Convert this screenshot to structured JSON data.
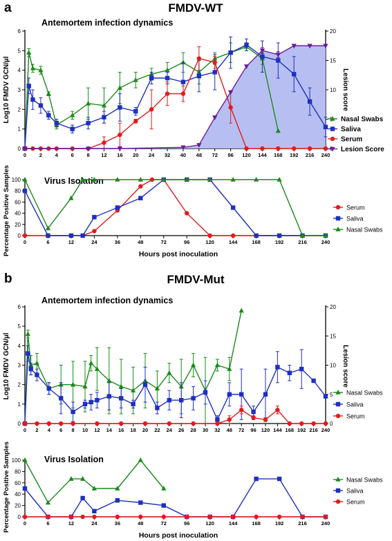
{
  "panels": [
    {
      "letter": "a",
      "title": "FMDV-WT",
      "top": {
        "subtitle": "Antemortem infection dynamics",
        "ylabel": "Log10 FMDV GCN/µl",
        "ylabel_right": "Lesion score"
      },
      "bottom": {
        "subtitle": "Virus Isolation",
        "ylabel": "Percentage Positive Samples",
        "xlabel": "Hours post inoculation"
      }
    },
    {
      "letter": "b",
      "title": "FMDV-Mut",
      "top": {
        "subtitle": "Antemortem infection dynamics",
        "ylabel": "Log10 FMDV GCN/µl",
        "ylabel_right": "Lesion score"
      },
      "bottom": {
        "subtitle": "Virus Isolation",
        "ylabel": "Percentage Positive Samples",
        "xlabel": "Hours post inoculation"
      }
    }
  ],
  "colors": {
    "nasal": "#1a8a1a",
    "saliva": "#1f2fbf",
    "serum": "#e41a1c",
    "lesion": "#6a1b9a",
    "lesion_fill": "#aab4f0"
  },
  "chart_data": [
    {
      "id": "wt-top",
      "type": "line",
      "title": "Antemortem infection dynamics",
      "ylabel": "Log10 FMDV GCN/µl",
      "ylabel_right": "Lesion score",
      "x_ticks": [
        0,
        2,
        4,
        6,
        8,
        12,
        16,
        20,
        24,
        32,
        40,
        48,
        72,
        96,
        120,
        144,
        168,
        192,
        216,
        240
      ],
      "ylim": [
        0,
        6
      ],
      "y_ticks": [
        0,
        1,
        2,
        3,
        4,
        5,
        6
      ],
      "ylim_right": [
        0,
        20
      ],
      "y_ticks_right": [
        0,
        5,
        10,
        15,
        20
      ],
      "legend_position": "right",
      "series": [
        {
          "name": "Nasal Swabs",
          "key": "nasal",
          "marker": "triangle",
          "x": [
            0,
            0.5,
            1,
            2,
            3,
            4,
            6,
            8,
            12,
            16,
            20,
            24,
            32,
            40,
            48,
            72,
            96,
            120,
            144,
            168
          ],
          "y": [
            0,
            4.9,
            4.1,
            4.0,
            2.8,
            1.2,
            1.7,
            2.3,
            2.2,
            3.1,
            3.5,
            3.8,
            4.0,
            4.4,
            3.9,
            4.6,
            4.9,
            5.2,
            4.6,
            0.9
          ],
          "err": [
            0,
            0.2,
            0.2,
            0.2,
            0.1,
            0.2,
            0.2,
            0.8,
            0.9,
            0.8,
            0.4,
            0.3,
            0.4,
            0.5,
            0.6,
            0.3,
            0.5,
            0.2,
            0.3,
            0
          ]
        },
        {
          "name": "Saliva",
          "key": "saliva",
          "marker": "square",
          "x": [
            0,
            0.5,
            1,
            2,
            3,
            4,
            6,
            8,
            12,
            16,
            20,
            24,
            32,
            40,
            48,
            72,
            96,
            120,
            144,
            168,
            192,
            216,
            240
          ],
          "y": [
            0,
            3.2,
            2.5,
            2.2,
            1.7,
            1.3,
            1.0,
            1.3,
            1.6,
            2.1,
            1.9,
            3.6,
            3.6,
            3.4,
            3.7,
            3.9,
            4.9,
            5.3,
            4.7,
            4.5,
            3.8,
            2.4,
            1.1
          ],
          "err": [
            0,
            0.4,
            0.5,
            0.4,
            0.2,
            0.2,
            0.2,
            0.3,
            0.3,
            0.7,
            0.2,
            0.3,
            0.3,
            1.0,
            0.8,
            0.9,
            0.8,
            0.3,
            0.8,
            0.9,
            0.9,
            0.7,
            0.5
          ]
        },
        {
          "name": "Serum",
          "key": "serum",
          "marker": "circle",
          "x": [
            0,
            1,
            2,
            3,
            4,
            6,
            8,
            12,
            16,
            20,
            24,
            32,
            40,
            48,
            72,
            96,
            120,
            144,
            168,
            192,
            216,
            240
          ],
          "y": [
            0,
            0,
            0,
            0,
            0,
            0,
            0,
            0.3,
            0.7,
            1.4,
            2.0,
            2.8,
            2.8,
            4.6,
            4.4,
            2.1,
            0,
            0,
            0,
            0,
            0,
            0
          ],
          "err": [
            0,
            0,
            0,
            0,
            0,
            0,
            0,
            0.3,
            0.6,
            0.1,
            1.0,
            0.6,
            0.4,
            0.6,
            0.3,
            0.8,
            0,
            0,
            0,
            0,
            0,
            0
          ]
        },
        {
          "name": "Lesion Score",
          "key": "lesion",
          "marker": "triangle-down",
          "axis": "right",
          "filled": true,
          "x": [
            0,
            8,
            16,
            40,
            48,
            72,
            96,
            120,
            144,
            168,
            192,
            216,
            240
          ],
          "y": [
            0,
            0,
            0,
            0.2,
            0.6,
            5.3,
            9.6,
            14,
            16.7,
            16,
            17.5,
            17.5,
            17.5
          ],
          "err": [
            0,
            0,
            0,
            0,
            0,
            0,
            0,
            0,
            0.5,
            0.5,
            0,
            0,
            0
          ]
        }
      ]
    },
    {
      "id": "wt-bottom",
      "type": "line",
      "title": "Virus Isolation",
      "ylabel": "Percentage Positive Samples",
      "xlabel": "Hours post inoculation",
      "x_ticks": [
        0,
        6,
        12,
        24,
        36,
        48,
        72,
        96,
        120,
        144,
        168,
        192,
        216,
        240
      ],
      "ylim": [
        0,
        100
      ],
      "y_ticks": [
        0,
        20,
        40,
        60,
        80,
        100
      ],
      "legend_position": "right",
      "series": [
        {
          "name": "Serum",
          "key": "serum",
          "marker": "circle",
          "x": [
            0,
            6,
            12,
            18,
            24,
            36,
            48,
            60,
            72,
            96,
            120,
            144,
            168,
            192,
            216,
            240
          ],
          "y": [
            0,
            0,
            0,
            0,
            8,
            45,
            88,
            100,
            100,
            40,
            0,
            0,
            0,
            0,
            0,
            0
          ]
        },
        {
          "name": "Saliva",
          "key": "saliva",
          "marker": "square",
          "x": [
            0,
            6,
            12,
            18,
            24,
            36,
            48,
            72,
            96,
            120,
            144,
            168,
            192,
            216,
            240
          ],
          "y": [
            80,
            0,
            0,
            0,
            33,
            50,
            67,
            100,
            100,
            100,
            50,
            0,
            0,
            0,
            0
          ]
        },
        {
          "name": "Nasal Swabs",
          "key": "nasal",
          "marker": "triangle",
          "x": [
            0,
            6,
            12,
            18,
            24,
            36,
            48,
            72,
            96,
            120,
            144,
            168,
            192,
            216,
            240
          ],
          "y": [
            100,
            13,
            67,
            100,
            100,
            100,
            100,
            100,
            100,
            100,
            100,
            100,
            100,
            0,
            0
          ]
        }
      ]
    },
    {
      "id": "mut-top",
      "type": "line",
      "title": "Antemortem infection dynamics",
      "ylabel": "Log10 FMDV GCN/µl",
      "ylabel_right": "Lesion score",
      "x_ticks": [
        0,
        2,
        4,
        6,
        8,
        10,
        12,
        14,
        16,
        18,
        20,
        22,
        24,
        26,
        28,
        30,
        32,
        48,
        72,
        96,
        120,
        144,
        168,
        192,
        216,
        240
      ],
      "ylim": [
        0,
        6
      ],
      "y_ticks": [
        0,
        1,
        2,
        3,
        4,
        5,
        6
      ],
      "ylim_right": [
        0,
        20
      ],
      "y_ticks_right": [
        0,
        5,
        10,
        15,
        20
      ],
      "legend_position": "right",
      "series": [
        {
          "name": "Nasal Swabs",
          "key": "nasal",
          "marker": "triangle",
          "x": [
            0,
            0.5,
            1,
            2,
            4,
            6,
            8,
            10,
            11,
            12,
            14,
            16,
            18,
            20,
            22,
            24,
            26,
            28,
            30,
            32,
            48,
            72
          ],
          "y": [
            0,
            4.6,
            3.0,
            3.1,
            1.8,
            2.0,
            2.0,
            1.9,
            3.1,
            2.8,
            2.2,
            1.9,
            1.7,
            2.2,
            1.8,
            2.6,
            1.9,
            3.0,
            1.7,
            3.0,
            2.8,
            5.8
          ],
          "err": [
            0,
            0.2,
            0.5,
            0.5,
            0.3,
            1.0,
            1.2,
            1.3,
            0.4,
            1.1,
            1.7,
            1.4,
            1.2,
            1.4,
            0.9,
            0.5,
            1.4,
            0.6,
            1.7,
            0.3,
            0.6,
            0
          ]
        },
        {
          "name": "Saliva",
          "key": "saliva",
          "marker": "square",
          "x": [
            0,
            0.5,
            1,
            2,
            4,
            6,
            8,
            10,
            11,
            12,
            14,
            16,
            18,
            20,
            22,
            24,
            26,
            28,
            30,
            32,
            48,
            72,
            96,
            120,
            144,
            168,
            192,
            216,
            240
          ],
          "y": [
            0,
            3.6,
            2.8,
            2.5,
            1.8,
            1.3,
            0.6,
            1.0,
            1.1,
            1.2,
            1.4,
            1.3,
            1.0,
            2.0,
            0.8,
            1.2,
            1.2,
            1.3,
            1.6,
            0.2,
            1.5,
            1.5,
            0.6,
            1.5,
            2.9,
            2.6,
            2.8,
            2.2,
            1.4
          ],
          "err": [
            0,
            0.4,
            0.3,
            0.3,
            0.3,
            0.8,
            0.5,
            0.2,
            0.4,
            0.4,
            0.7,
            0.5,
            0.2,
            0.9,
            0.3,
            0.5,
            0.9,
            0.6,
            0.6,
            0.2,
            0.6,
            1.3,
            0.3,
            1.3,
            0.8,
            0.4,
            1.0,
            0,
            0
          ]
        },
        {
          "name": "Serum",
          "key": "serum",
          "marker": "circle",
          "x": [
            0,
            2,
            4,
            6,
            8,
            12,
            16,
            20,
            24,
            28,
            32,
            48,
            72,
            96,
            120,
            144,
            168,
            192,
            216,
            240
          ],
          "y": [
            0,
            0,
            0,
            0,
            0,
            0,
            0,
            0,
            0,
            0,
            0,
            0.2,
            0.7,
            0.3,
            0.2,
            0.7,
            0,
            0,
            0,
            0
          ],
          "err": [
            0,
            0,
            0,
            0,
            0,
            0,
            0,
            0,
            0,
            0,
            0,
            0.2,
            0.2,
            0.1,
            0.1,
            0.2,
            0,
            0,
            0,
            0
          ]
        }
      ]
    },
    {
      "id": "mut-bottom",
      "type": "line",
      "title": "Virus Isolation",
      "ylabel": "Percentage Positive Samples",
      "xlabel": "Hours post inoculation",
      "x_ticks": [
        0,
        6,
        12,
        24,
        36,
        48,
        72,
        96,
        120,
        144,
        168,
        192,
        216,
        240
      ],
      "ylim": [
        0,
        100
      ],
      "y_ticks": [
        0,
        20,
        40,
        60,
        80,
        100
      ],
      "legend_position": "right",
      "series": [
        {
          "name": "Nasal Swabs",
          "key": "nasal",
          "marker": "triangle",
          "x": [
            0,
            6,
            12,
            18,
            24,
            36,
            48,
            72
          ],
          "y": [
            100,
            25,
            67,
            67,
            50,
            50,
            100,
            50
          ]
        },
        {
          "name": "Saliva",
          "key": "saliva",
          "marker": "square",
          "x": [
            0,
            6,
            12,
            18,
            24,
            36,
            48,
            72,
            96,
            120,
            144,
            168,
            192,
            216,
            240
          ],
          "y": [
            50,
            0,
            0,
            33,
            10,
            29,
            25,
            20,
            0,
            0,
            0,
            67,
            67,
            0,
            0
          ]
        },
        {
          "name": "Serum",
          "key": "serum",
          "marker": "circle",
          "x": [
            0,
            6,
            12,
            18,
            24,
            36,
            48,
            72,
            96,
            120,
            144,
            168,
            192,
            216,
            240
          ],
          "y": [
            0,
            0,
            0,
            0,
            0,
            0,
            0,
            0,
            0,
            0,
            0,
            0,
            0,
            0,
            0
          ]
        }
      ]
    }
  ]
}
